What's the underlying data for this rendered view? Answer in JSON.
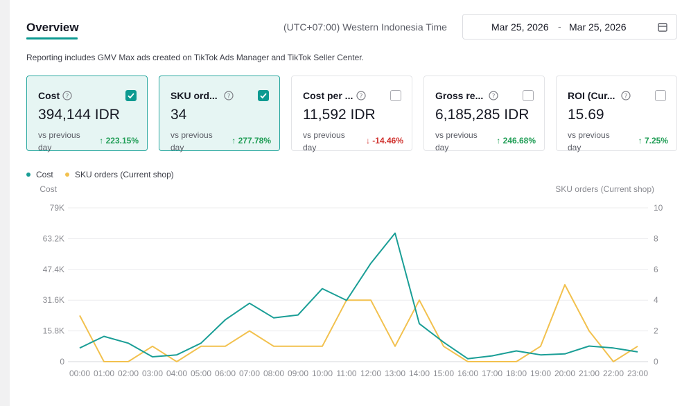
{
  "header": {
    "title": "Overview",
    "timezone": "(UTC+07:00) Western Indonesia Time",
    "date_start": "Mar 25, 2026",
    "date_separator": "-",
    "date_end": "Mar 25, 2026"
  },
  "note": "Reporting includes GMV Max ads created on TikTok Ads Manager and TikTok Seller Center.",
  "metrics": [
    {
      "name": "Cost",
      "value": "394,144 IDR",
      "vs": "vs previous day",
      "change": "223.15%",
      "direction": "up",
      "selected": true
    },
    {
      "name": "SKU ord...",
      "value": "34",
      "vs": "vs previous day",
      "change": "277.78%",
      "direction": "up",
      "selected": true
    },
    {
      "name": "Cost per ...",
      "value": "11,592 IDR",
      "vs": "vs previous day",
      "change": "-14.46%",
      "direction": "down",
      "selected": false
    },
    {
      "name": "Gross re...",
      "value": "6,185,285 IDR",
      "vs": "vs previous day",
      "change": "246.68%",
      "direction": "up",
      "selected": false
    },
    {
      "name": "ROI (Cur...",
      "value": "15.69",
      "vs": "vs previous day",
      "change": "7.25%",
      "direction": "up",
      "selected": false
    }
  ],
  "colors": {
    "accent": "#0d9a91",
    "cost_series": "#1a9e96",
    "orders_series": "#f2c14e",
    "up": "#1f9d55",
    "down": "#d0312d"
  },
  "chart_data": {
    "type": "line",
    "x": [
      "00:00",
      "01:00",
      "02:00",
      "03:00",
      "04:00",
      "05:00",
      "06:00",
      "07:00",
      "08:00",
      "09:00",
      "10:00",
      "11:00",
      "12:00",
      "13:00",
      "14:00",
      "15:00",
      "16:00",
      "17:00",
      "18:00",
      "19:00",
      "20:00",
      "21:00",
      "22:00",
      "23:00"
    ],
    "y_left": {
      "label": "Cost",
      "ticks": [
        "0",
        "15.8K",
        "31.6K",
        "47.4K",
        "63.2K",
        "79K"
      ],
      "range": [
        0,
        79000
      ]
    },
    "y_right": {
      "label": "SKU orders (Current shop)",
      "ticks": [
        "0",
        "2",
        "4",
        "6",
        "8",
        "10"
      ],
      "range": [
        0,
        10
      ]
    },
    "series": [
      {
        "name": "Cost",
        "axis": "left",
        "values": [
          7000,
          13000,
          9500,
          2500,
          3500,
          9500,
          21500,
          30000,
          22500,
          24000,
          37500,
          31500,
          50500,
          66000,
          19500,
          10000,
          1500,
          3000,
          5500,
          3500,
          4000,
          8000,
          7000,
          5000
        ]
      },
      {
        "name": "SKU orders (Current shop)",
        "axis": "right",
        "values": [
          3,
          0,
          0,
          1,
          0,
          1,
          1,
          2,
          1,
          1,
          1,
          4,
          4,
          1,
          4,
          1,
          0,
          0,
          0,
          1,
          5,
          2,
          0,
          1
        ]
      }
    ],
    "grid": true,
    "legend": "top-left"
  }
}
